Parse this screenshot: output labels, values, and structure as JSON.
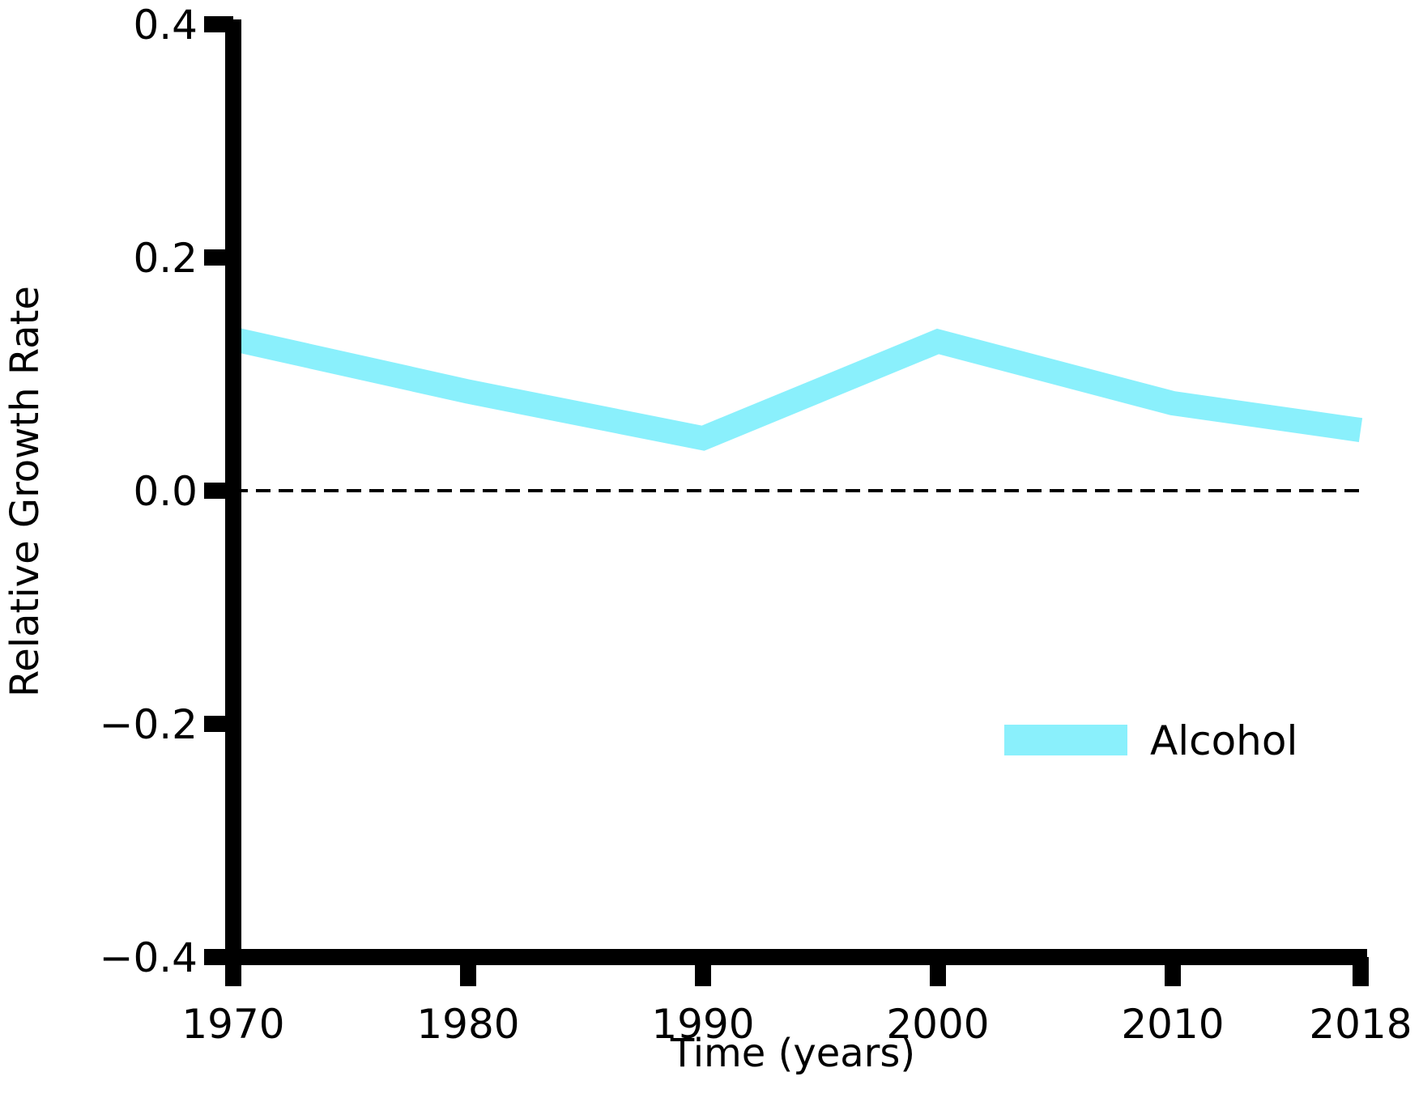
{
  "chart_data": {
    "type": "line",
    "title": "",
    "xlabel": "Time (years)",
    "ylabel": "Relative Growth Rate",
    "xlim": [
      1970,
      2018
    ],
    "ylim": [
      -0.4,
      0.4
    ],
    "x_ticks": [
      1970,
      1980,
      1990,
      2000,
      2010,
      2018
    ],
    "x_tick_labels": [
      "1970",
      "1980",
      "1990",
      "2000",
      "2010",
      "2018"
    ],
    "y_ticks": [
      -0.4,
      -0.2,
      0.0,
      0.2,
      0.4
    ],
    "y_tick_labels": [
      "−0.4",
      "−0.2",
      "0.0",
      "0.2",
      "0.4"
    ],
    "grid": false,
    "legend_position": "lower-right",
    "reference_line": {
      "y": 0.0,
      "style": "dashed",
      "color": "#000000"
    },
    "series": [
      {
        "name": "Alcohol",
        "color": "#8af0fc",
        "x": [
          1970,
          1980,
          1990,
          2000,
          2010,
          2018
        ],
        "y": [
          0.13,
          0.085,
          0.045,
          0.128,
          0.075,
          0.052
        ]
      }
    ]
  }
}
